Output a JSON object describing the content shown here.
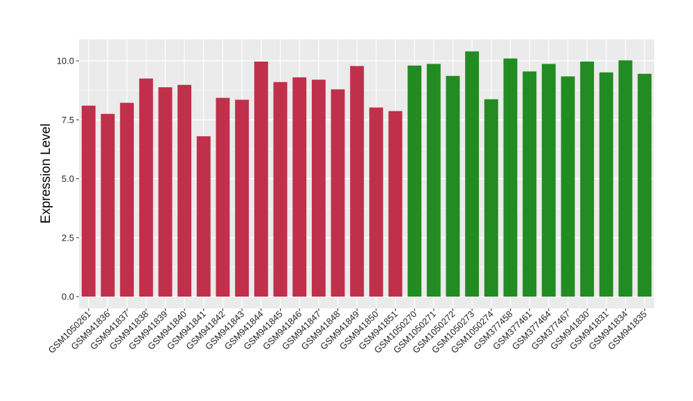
{
  "chart_data": {
    "type": "bar",
    "title": "",
    "xlabel": "",
    "ylabel": "Expression Level",
    "ylim": [
      0,
      10.8
    ],
    "y_ticks": [
      0.0,
      2.5,
      5.0,
      7.5,
      10.0
    ],
    "y_tick_labels": [
      "0.0",
      "2.5",
      "5.0",
      "7.5",
      "10.0"
    ],
    "grid": true,
    "legend": "none",
    "colors": {
      "group1": "#C0304A",
      "group2": "#228B22",
      "panel": "#EBEBEB",
      "grid": "#FFFFFF"
    },
    "categories": [
      "GSM1050261",
      "GSM941836",
      "GSM941837",
      "GSM941838",
      "GSM941839",
      "GSM941840",
      "GSM941841",
      "GSM941842",
      "GSM941843",
      "GSM941844",
      "GSM941845",
      "GSM941846",
      "GSM941847",
      "GSM941848",
      "GSM941849",
      "GSM941850",
      "GSM941851",
      "GSM1050270",
      "GSM1050271",
      "GSM1050272",
      "GSM1050273",
      "GSM1050274",
      "GSM377458",
      "GSM377461",
      "GSM377464",
      "GSM377467",
      "GSM941830",
      "GSM941831",
      "GSM941834",
      "GSM941835"
    ],
    "values": [
      8.1,
      7.75,
      8.22,
      9.25,
      8.88,
      8.98,
      6.8,
      8.43,
      8.35,
      9.97,
      9.1,
      9.3,
      9.2,
      8.79,
      9.78,
      8.02,
      7.87,
      9.8,
      9.87,
      9.36,
      10.4,
      8.37,
      10.1,
      9.55,
      9.87,
      9.34,
      9.97,
      9.51,
      10.02,
      9.45
    ],
    "groups": [
      1,
      1,
      1,
      1,
      1,
      1,
      1,
      1,
      1,
      1,
      1,
      1,
      1,
      1,
      1,
      1,
      1,
      2,
      2,
      2,
      2,
      2,
      2,
      2,
      2,
      2,
      2,
      2,
      2,
      2
    ]
  }
}
